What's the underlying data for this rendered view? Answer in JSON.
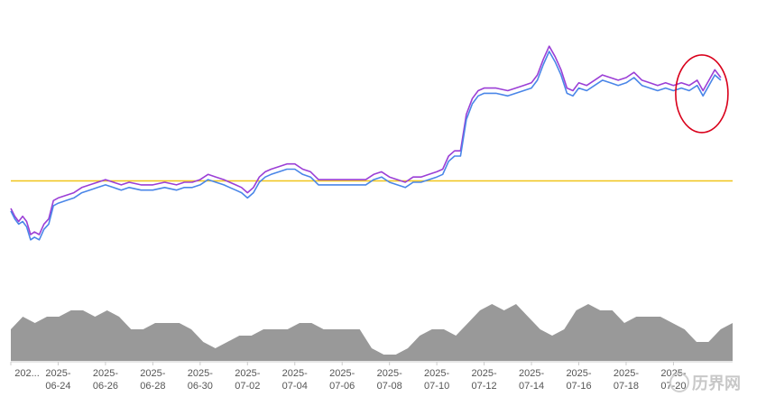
{
  "chart_data": {
    "type": "line",
    "title": "",
    "xlabel": "",
    "ylabel": "",
    "x_tick_labels": [
      {
        "date": "2025-06-22",
        "lines": [
          "202...",
          ""
        ]
      },
      {
        "date": "2025-06-24",
        "lines": [
          "2025-",
          "06-24"
        ]
      },
      {
        "date": "2025-06-26",
        "lines": [
          "2025-",
          "06-26"
        ]
      },
      {
        "date": "2025-06-28",
        "lines": [
          "2025-",
          "06-28"
        ]
      },
      {
        "date": "2025-06-30",
        "lines": [
          "2025-",
          "06-30"
        ]
      },
      {
        "date": "2025-07-02",
        "lines": [
          "2025-",
          "07-02"
        ]
      },
      {
        "date": "2025-07-04",
        "lines": [
          "2025-",
          "07-04"
        ]
      },
      {
        "date": "2025-07-06",
        "lines": [
          "2025-",
          "07-06"
        ]
      },
      {
        "date": "2025-07-08",
        "lines": [
          "2025-",
          "07-08"
        ]
      },
      {
        "date": "2025-07-10",
        "lines": [
          "2025-",
          "07-10"
        ]
      },
      {
        "date": "2025-07-12",
        "lines": [
          "2025-",
          "07-12"
        ]
      },
      {
        "date": "2025-07-14",
        "lines": [
          "2025-",
          "07-14"
        ]
      },
      {
        "date": "2025-07-16",
        "lines": [
          "2025-",
          "07-16"
        ]
      },
      {
        "date": "2025-07-18",
        "lines": [
          "2025-",
          "07-18"
        ]
      },
      {
        "date": "2025-07-20",
        "lines": [
          "2025-",
          "07-20"
        ]
      }
    ],
    "ylim": [
      0,
      100
    ],
    "reference_line": {
      "value": 40.5,
      "color": "#f0c419"
    },
    "series": [
      {
        "color": "#9b3fd6",
        "points": [
          [
            "2025-06-22",
            30
          ],
          [
            "2025-06-22",
            27
          ],
          [
            "2025-06-22",
            25
          ],
          [
            "2025-06-22",
            27
          ],
          [
            "2025-06-22",
            25
          ],
          [
            "2025-06-22",
            20
          ],
          [
            "2025-06-23",
            21
          ],
          [
            "2025-06-23",
            20
          ],
          [
            "2025-06-23",
            24
          ],
          [
            "2025-06-23",
            26
          ],
          [
            "2025-06-23",
            33
          ],
          [
            "2025-06-24",
            34
          ],
          [
            "2025-06-24",
            35
          ],
          [
            "2025-06-24",
            36
          ],
          [
            "2025-06-25",
            38
          ],
          [
            "2025-06-25",
            39
          ],
          [
            "2025-06-25",
            40
          ],
          [
            "2025-06-26",
            41
          ],
          [
            "2025-06-26",
            40
          ],
          [
            "2025-06-26",
            39
          ],
          [
            "2025-06-27",
            40
          ],
          [
            "2025-06-27",
            39
          ],
          [
            "2025-06-28",
            39
          ],
          [
            "2025-06-28",
            40
          ],
          [
            "2025-06-29",
            39
          ],
          [
            "2025-06-29",
            40
          ],
          [
            "2025-06-29",
            40
          ],
          [
            "2025-06-30",
            41
          ],
          [
            "2025-06-30",
            43
          ],
          [
            "2025-06-30",
            42
          ],
          [
            "2025-07-01",
            41
          ],
          [
            "2025-07-01",
            40
          ],
          [
            "2025-07-01",
            39
          ],
          [
            "2025-07-01",
            38
          ],
          [
            "2025-07-02",
            36
          ],
          [
            "2025-07-02",
            38
          ],
          [
            "2025-07-02",
            42
          ],
          [
            "2025-07-02",
            44
          ],
          [
            "2025-07-03",
            45
          ],
          [
            "2025-07-03",
            46
          ],
          [
            "2025-07-03",
            47
          ],
          [
            "2025-07-04",
            47
          ],
          [
            "2025-07-04",
            45
          ],
          [
            "2025-07-04",
            44
          ],
          [
            "2025-07-05",
            41
          ],
          [
            "2025-07-05",
            41
          ],
          [
            "2025-07-05",
            41
          ],
          [
            "2025-07-06",
            41
          ],
          [
            "2025-07-06",
            41
          ],
          [
            "2025-07-07",
            41
          ],
          [
            "2025-07-07",
            43
          ],
          [
            "2025-07-07",
            44
          ],
          [
            "2025-07-08",
            42
          ],
          [
            "2025-07-08",
            41
          ],
          [
            "2025-07-08",
            40
          ],
          [
            "2025-07-09",
            42
          ],
          [
            "2025-07-09",
            42
          ],
          [
            "2025-07-09",
            43
          ],
          [
            "2025-07-10",
            44
          ],
          [
            "2025-07-10",
            45
          ],
          [
            "2025-07-10",
            50
          ],
          [
            "2025-07-10",
            52
          ],
          [
            "2025-07-11",
            52
          ],
          [
            "2025-07-11",
            66
          ],
          [
            "2025-07-11",
            72
          ],
          [
            "2025-07-11",
            75
          ],
          [
            "2025-07-12",
            76
          ],
          [
            "2025-07-12",
            76
          ],
          [
            "2025-07-13",
            75
          ],
          [
            "2025-07-13",
            76
          ],
          [
            "2025-07-13",
            77
          ],
          [
            "2025-07-14",
            78
          ],
          [
            "2025-07-14",
            81
          ],
          [
            "2025-07-14",
            87
          ],
          [
            "2025-07-14",
            92
          ],
          [
            "2025-07-15",
            88
          ],
          [
            "2025-07-15",
            83
          ],
          [
            "2025-07-15",
            76
          ],
          [
            "2025-07-15",
            75
          ],
          [
            "2025-07-16",
            78
          ],
          [
            "2025-07-16",
            77
          ],
          [
            "2025-07-16",
            79
          ],
          [
            "2025-07-17",
            81
          ],
          [
            "2025-07-17",
            80
          ],
          [
            "2025-07-17",
            79
          ],
          [
            "2025-07-18",
            80
          ],
          [
            "2025-07-18",
            82
          ],
          [
            "2025-07-18",
            79
          ],
          [
            "2025-07-19",
            78
          ],
          [
            "2025-07-19",
            77
          ],
          [
            "2025-07-19",
            78
          ],
          [
            "2025-07-20",
            77
          ],
          [
            "2025-07-20",
            78
          ],
          [
            "2025-07-20",
            77
          ],
          [
            "2025-07-21",
            79
          ],
          [
            "2025-07-21",
            75
          ],
          [
            "2025-07-21",
            79
          ],
          [
            "2025-07-21",
            83
          ],
          [
            "2025-07-22",
            80
          ]
        ]
      },
      {
        "color": "#4a86e8",
        "points": [
          [
            "2025-06-22",
            29
          ],
          [
            "2025-06-22",
            26
          ],
          [
            "2025-06-22",
            24
          ],
          [
            "2025-06-22",
            25
          ],
          [
            "2025-06-22",
            23
          ],
          [
            "2025-06-22",
            18
          ],
          [
            "2025-06-23",
            19
          ],
          [
            "2025-06-23",
            18
          ],
          [
            "2025-06-23",
            22
          ],
          [
            "2025-06-23",
            24
          ],
          [
            "2025-06-23",
            31
          ],
          [
            "2025-06-24",
            32
          ],
          [
            "2025-06-24",
            33
          ],
          [
            "2025-06-24",
            34
          ],
          [
            "2025-06-25",
            36
          ],
          [
            "2025-06-25",
            37
          ],
          [
            "2025-06-25",
            38
          ],
          [
            "2025-06-26",
            39
          ],
          [
            "2025-06-26",
            38
          ],
          [
            "2025-06-26",
            37
          ],
          [
            "2025-06-27",
            38
          ],
          [
            "2025-06-27",
            37
          ],
          [
            "2025-06-28",
            37
          ],
          [
            "2025-06-28",
            38
          ],
          [
            "2025-06-29",
            37
          ],
          [
            "2025-06-29",
            38
          ],
          [
            "2025-06-29",
            38
          ],
          [
            "2025-06-30",
            39
          ],
          [
            "2025-06-30",
            41
          ],
          [
            "2025-06-30",
            40
          ],
          [
            "2025-07-01",
            39
          ],
          [
            "2025-07-01",
            38
          ],
          [
            "2025-07-01",
            37
          ],
          [
            "2025-07-01",
            36
          ],
          [
            "2025-07-02",
            34
          ],
          [
            "2025-07-02",
            36
          ],
          [
            "2025-07-02",
            40
          ],
          [
            "2025-07-02",
            42
          ],
          [
            "2025-07-03",
            43
          ],
          [
            "2025-07-03",
            44
          ],
          [
            "2025-07-03",
            45
          ],
          [
            "2025-07-04",
            45
          ],
          [
            "2025-07-04",
            43
          ],
          [
            "2025-07-04",
            42
          ],
          [
            "2025-07-05",
            39
          ],
          [
            "2025-07-05",
            39
          ],
          [
            "2025-07-05",
            39
          ],
          [
            "2025-07-06",
            39
          ],
          [
            "2025-07-06",
            39
          ],
          [
            "2025-07-07",
            39
          ],
          [
            "2025-07-07",
            41
          ],
          [
            "2025-07-07",
            42
          ],
          [
            "2025-07-08",
            40
          ],
          [
            "2025-07-08",
            39
          ],
          [
            "2025-07-08",
            38
          ],
          [
            "2025-07-09",
            40
          ],
          [
            "2025-07-09",
            40
          ],
          [
            "2025-07-09",
            41
          ],
          [
            "2025-07-10",
            42
          ],
          [
            "2025-07-10",
            43
          ],
          [
            "2025-07-10",
            48
          ],
          [
            "2025-07-10",
            50
          ],
          [
            "2025-07-11",
            50
          ],
          [
            "2025-07-11",
            64
          ],
          [
            "2025-07-11",
            70
          ],
          [
            "2025-07-11",
            73
          ],
          [
            "2025-07-12",
            74
          ],
          [
            "2025-07-12",
            74
          ],
          [
            "2025-07-13",
            73
          ],
          [
            "2025-07-13",
            74
          ],
          [
            "2025-07-13",
            75
          ],
          [
            "2025-07-14",
            76
          ],
          [
            "2025-07-14",
            79
          ],
          [
            "2025-07-14",
            85
          ],
          [
            "2025-07-14",
            90
          ],
          [
            "2025-07-15",
            86
          ],
          [
            "2025-07-15",
            81
          ],
          [
            "2025-07-15",
            74
          ],
          [
            "2025-07-15",
            73
          ],
          [
            "2025-07-16",
            76
          ],
          [
            "2025-07-16",
            75
          ],
          [
            "2025-07-16",
            77
          ],
          [
            "2025-07-17",
            79
          ],
          [
            "2025-07-17",
            78
          ],
          [
            "2025-07-17",
            77
          ],
          [
            "2025-07-18",
            78
          ],
          [
            "2025-07-18",
            80
          ],
          [
            "2025-07-18",
            77
          ],
          [
            "2025-07-19",
            76
          ],
          [
            "2025-07-19",
            75
          ],
          [
            "2025-07-19",
            76
          ],
          [
            "2025-07-20",
            75
          ],
          [
            "2025-07-20",
            76
          ],
          [
            "2025-07-20",
            75
          ],
          [
            "2025-07-21",
            77
          ],
          [
            "2025-07-21",
            73
          ],
          [
            "2025-07-21",
            77
          ],
          [
            "2025-07-21",
            81
          ],
          [
            "2025-07-22",
            79
          ]
        ]
      }
    ],
    "overview": {
      "type": "area",
      "color": "#999999",
      "ylim": [
        0,
        10
      ],
      "values": [
        5,
        7,
        6,
        7,
        7,
        8,
        8,
        7,
        8,
        7,
        5,
        5,
        6,
        6,
        6,
        5,
        3,
        2,
        3,
        4,
        4,
        5,
        5,
        5,
        6,
        6,
        5,
        5,
        5,
        5,
        2,
        1,
        1,
        2,
        4,
        5,
        5,
        4,
        6,
        8,
        9,
        8,
        9,
        7,
        5,
        4,
        5,
        8,
        9,
        8,
        8,
        6,
        7,
        7,
        7,
        6,
        5,
        3,
        3,
        5,
        6
      ]
    },
    "annotation": {
      "shape": "ellipse",
      "color": "#d9001b",
      "x_date": "2025-07-21",
      "y_value": 79
    },
    "grid": false,
    "legend": "none"
  },
  "watermark": {
    "text": "历界网"
  }
}
